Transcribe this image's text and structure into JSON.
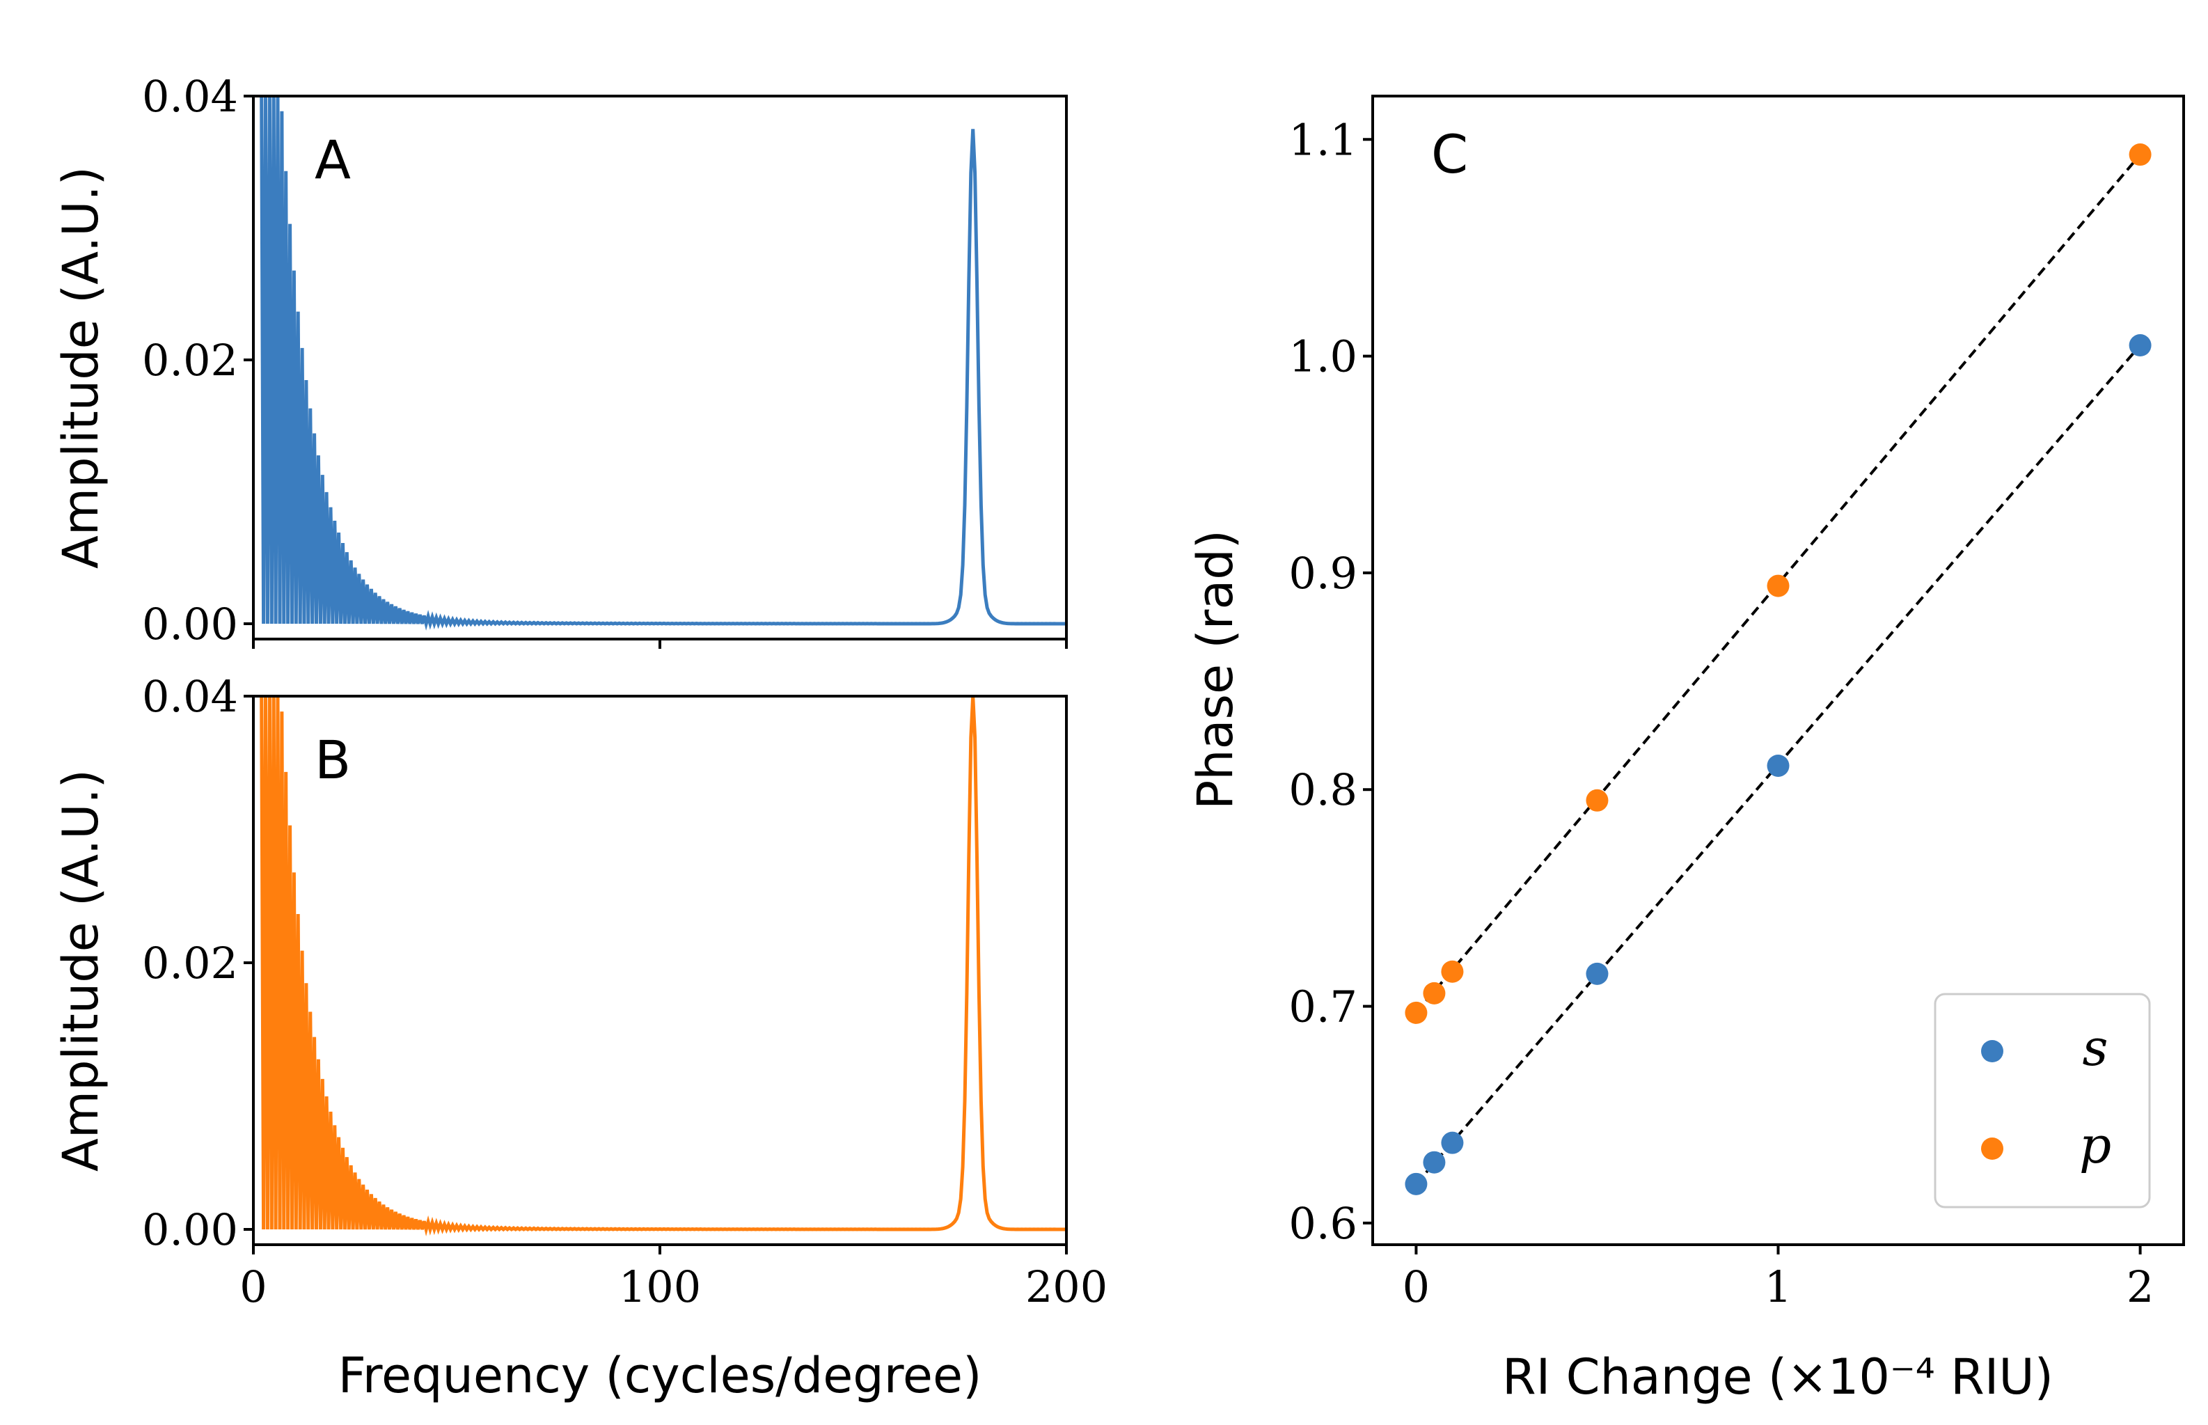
{
  "chart_data": [
    {
      "panel_label": "A",
      "type": "line",
      "ylabel": "Amplitude (A.U.)",
      "xlim": [
        0,
        200
      ],
      "ylim": [
        0,
        0.04
      ],
      "yticks": [
        "0.00",
        "0.02",
        "0.04"
      ],
      "xticks": [
        0,
        100,
        200
      ],
      "xticklabels_visible": false,
      "color": "#3b7dbf",
      "low_freq_decay": {
        "x_start": 2,
        "x_end": 200,
        "value_at_start": 0.04,
        "tau": 8
      },
      "peak": {
        "x": 177,
        "amplitude": 0.0355
      },
      "grid": false
    },
    {
      "panel_label": "B",
      "type": "line",
      "ylabel": "Amplitude (A.U.)",
      "xlabel": "Frequency (cycles/degree)",
      "xlim": [
        0,
        200
      ],
      "ylim": [
        0,
        0.04
      ],
      "yticks": [
        "0.00",
        "0.02",
        "0.04"
      ],
      "xticks": [
        "0",
        "100",
        "200"
      ],
      "color": "#ff7f0e",
      "low_freq_decay": {
        "x_start": 2,
        "x_end": 200,
        "value_at_start": 0.04,
        "tau": 8
      },
      "peak": {
        "x": 177,
        "amplitude": 0.0385
      },
      "grid": false
    },
    {
      "panel_label": "C",
      "type": "scatter",
      "xlabel": "RI Change (×10⁻⁴ RIU)",
      "ylabel": "Phase (rad)",
      "xlim": [
        -0.12,
        2.12
      ],
      "ylim": [
        0.59,
        1.12
      ],
      "xticks": [
        "0",
        "1",
        "2"
      ],
      "yticks": [
        "0.6",
        "0.7",
        "0.8",
        "0.9",
        "1.0",
        "1.1"
      ],
      "series": [
        {
          "name": "s",
          "color": "#3b7dbf",
          "x": [
            0,
            0.05,
            0.1,
            0.5,
            1,
            2
          ],
          "y": [
            0.618,
            0.628,
            0.637,
            0.715,
            0.811,
            1.005
          ]
        },
        {
          "name": "p",
          "color": "#ff7f0e",
          "x": [
            0,
            0.05,
            0.1,
            0.5,
            1,
            2
          ],
          "y": [
            0.697,
            0.706,
            0.716,
            0.795,
            0.894,
            1.093
          ]
        }
      ],
      "fit_lines": [
        {
          "series": "s",
          "x": [
            0,
            2
          ],
          "y": [
            0.618,
            1.005
          ]
        },
        {
          "series": "p",
          "x": [
            0,
            2
          ],
          "y": [
            0.697,
            1.093
          ]
        }
      ],
      "legend": "lower-right",
      "grid": false
    }
  ]
}
